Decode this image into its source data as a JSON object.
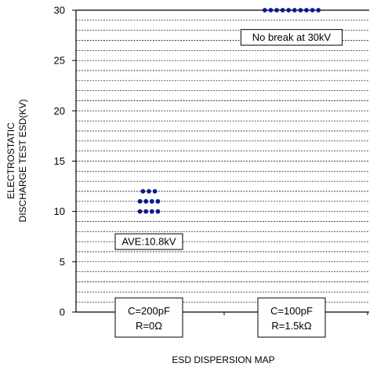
{
  "chart_data": {
    "type": "scatter",
    "title": "",
    "xlabel": "ESD DISPERSION MAP",
    "ylabel_lines": [
      "ELECTROSTATIC",
      "DISCHARGE TEST ESD(KV)"
    ],
    "ylim": [
      0,
      30
    ],
    "y_ticks": [
      0,
      5,
      10,
      15,
      20,
      25,
      30
    ],
    "y_minor_step": 1,
    "grid": true,
    "categories": [
      {
        "lines": [
          "C=200pF",
          "R=0Ω"
        ]
      },
      {
        "lines": [
          "C=100pF",
          "R=1.5kΩ"
        ]
      }
    ],
    "series": [
      {
        "category": 0,
        "points": [
          {
            "y": 12,
            "count": 3
          },
          {
            "y": 11,
            "count": 4
          },
          {
            "y": 10,
            "count": 4
          }
        ]
      },
      {
        "category": 1,
        "points": [
          {
            "y": 30,
            "count": 10
          }
        ]
      }
    ],
    "annotations": [
      {
        "text": "AVE:10.8kV",
        "category": 0,
        "y": 7
      },
      {
        "text": "No break at 30kV",
        "category": 1,
        "y": 27.3
      }
    ],
    "colors": {
      "marker": "#0a1a8c",
      "grid": "#000000",
      "axis": "#000000"
    }
  }
}
